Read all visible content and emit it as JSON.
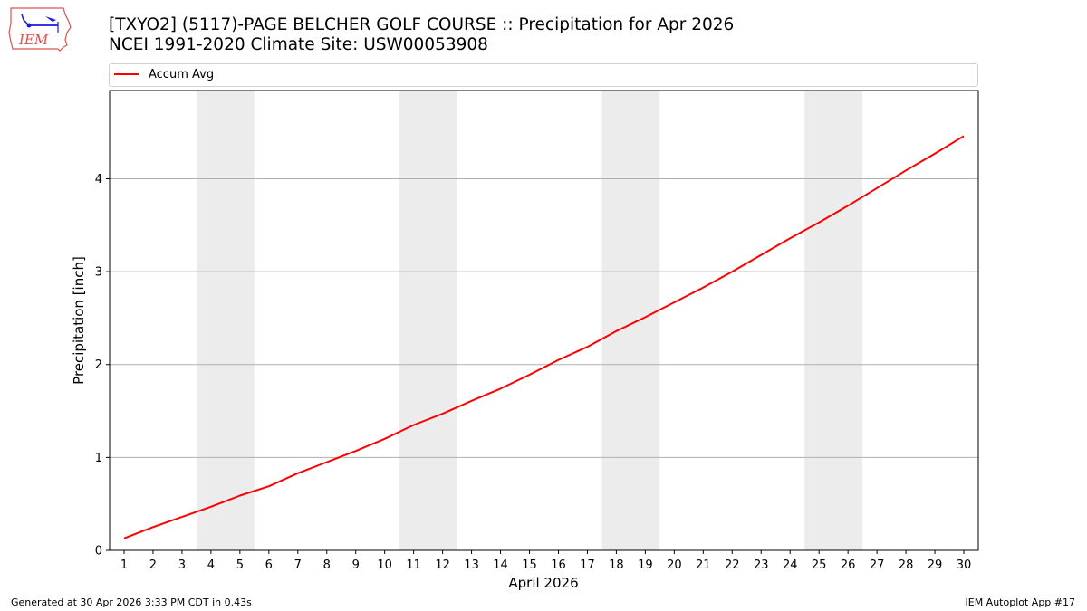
{
  "header": {
    "logo_text": "IEM",
    "title_line1": "[TXYO2] (5117)-PAGE BELCHER GOLF COURSE :: Precipitation for Apr 2026",
    "title_line2": "NCEI 1991-2020 Climate Site: USW00053908"
  },
  "legend": {
    "items": [
      {
        "label": "Accum Avg",
        "color": "#ff0000"
      }
    ]
  },
  "axes": {
    "xlabel": "April 2026",
    "ylabel": "Precipitation [inch]"
  },
  "footer": {
    "left": "Generated at 30 Apr 2026 3:33 PM CDT in 0.43s",
    "right": "IEM Autoplot App #17"
  },
  "chart_data": {
    "type": "line",
    "title": "[TXYO2] (5117)-PAGE BELCHER GOLF COURSE :: Precipitation for Apr 2026 / NCEI 1991-2020 Climate Site: USW00053908",
    "xlabel": "April 2026",
    "ylabel": "Precipitation [inch]",
    "x": [
      1,
      2,
      3,
      4,
      5,
      6,
      7,
      8,
      9,
      10,
      11,
      12,
      13,
      14,
      15,
      16,
      17,
      18,
      19,
      20,
      21,
      22,
      23,
      24,
      25,
      26,
      27,
      28,
      29,
      30
    ],
    "series": [
      {
        "name": "Accum Avg",
        "color": "#ff0000",
        "values": [
          0.13,
          0.25,
          0.36,
          0.47,
          0.59,
          0.69,
          0.83,
          0.95,
          1.07,
          1.2,
          1.35,
          1.47,
          1.61,
          1.74,
          1.89,
          2.05,
          2.19,
          2.36,
          2.51,
          2.67,
          2.83,
          3.0,
          3.18,
          3.36,
          3.53,
          3.71,
          3.9,
          4.09,
          4.27,
          4.46
        ]
      }
    ],
    "xlim": [
      0.5,
      30.5
    ],
    "ylim": [
      0,
      4.95
    ],
    "yticks": [
      0,
      1,
      2,
      3,
      4
    ],
    "xticks": [
      1,
      2,
      3,
      4,
      5,
      6,
      7,
      8,
      9,
      10,
      11,
      12,
      13,
      14,
      15,
      16,
      17,
      18,
      19,
      20,
      21,
      22,
      23,
      24,
      25,
      26,
      27,
      28,
      29,
      30
    ],
    "weekend_shading": [
      [
        3.5,
        5.5
      ],
      [
        10.5,
        12.5
      ],
      [
        17.5,
        19.5
      ],
      [
        24.5,
        26.5
      ]
    ],
    "grid": "y",
    "legend_position": "top, above plot"
  }
}
